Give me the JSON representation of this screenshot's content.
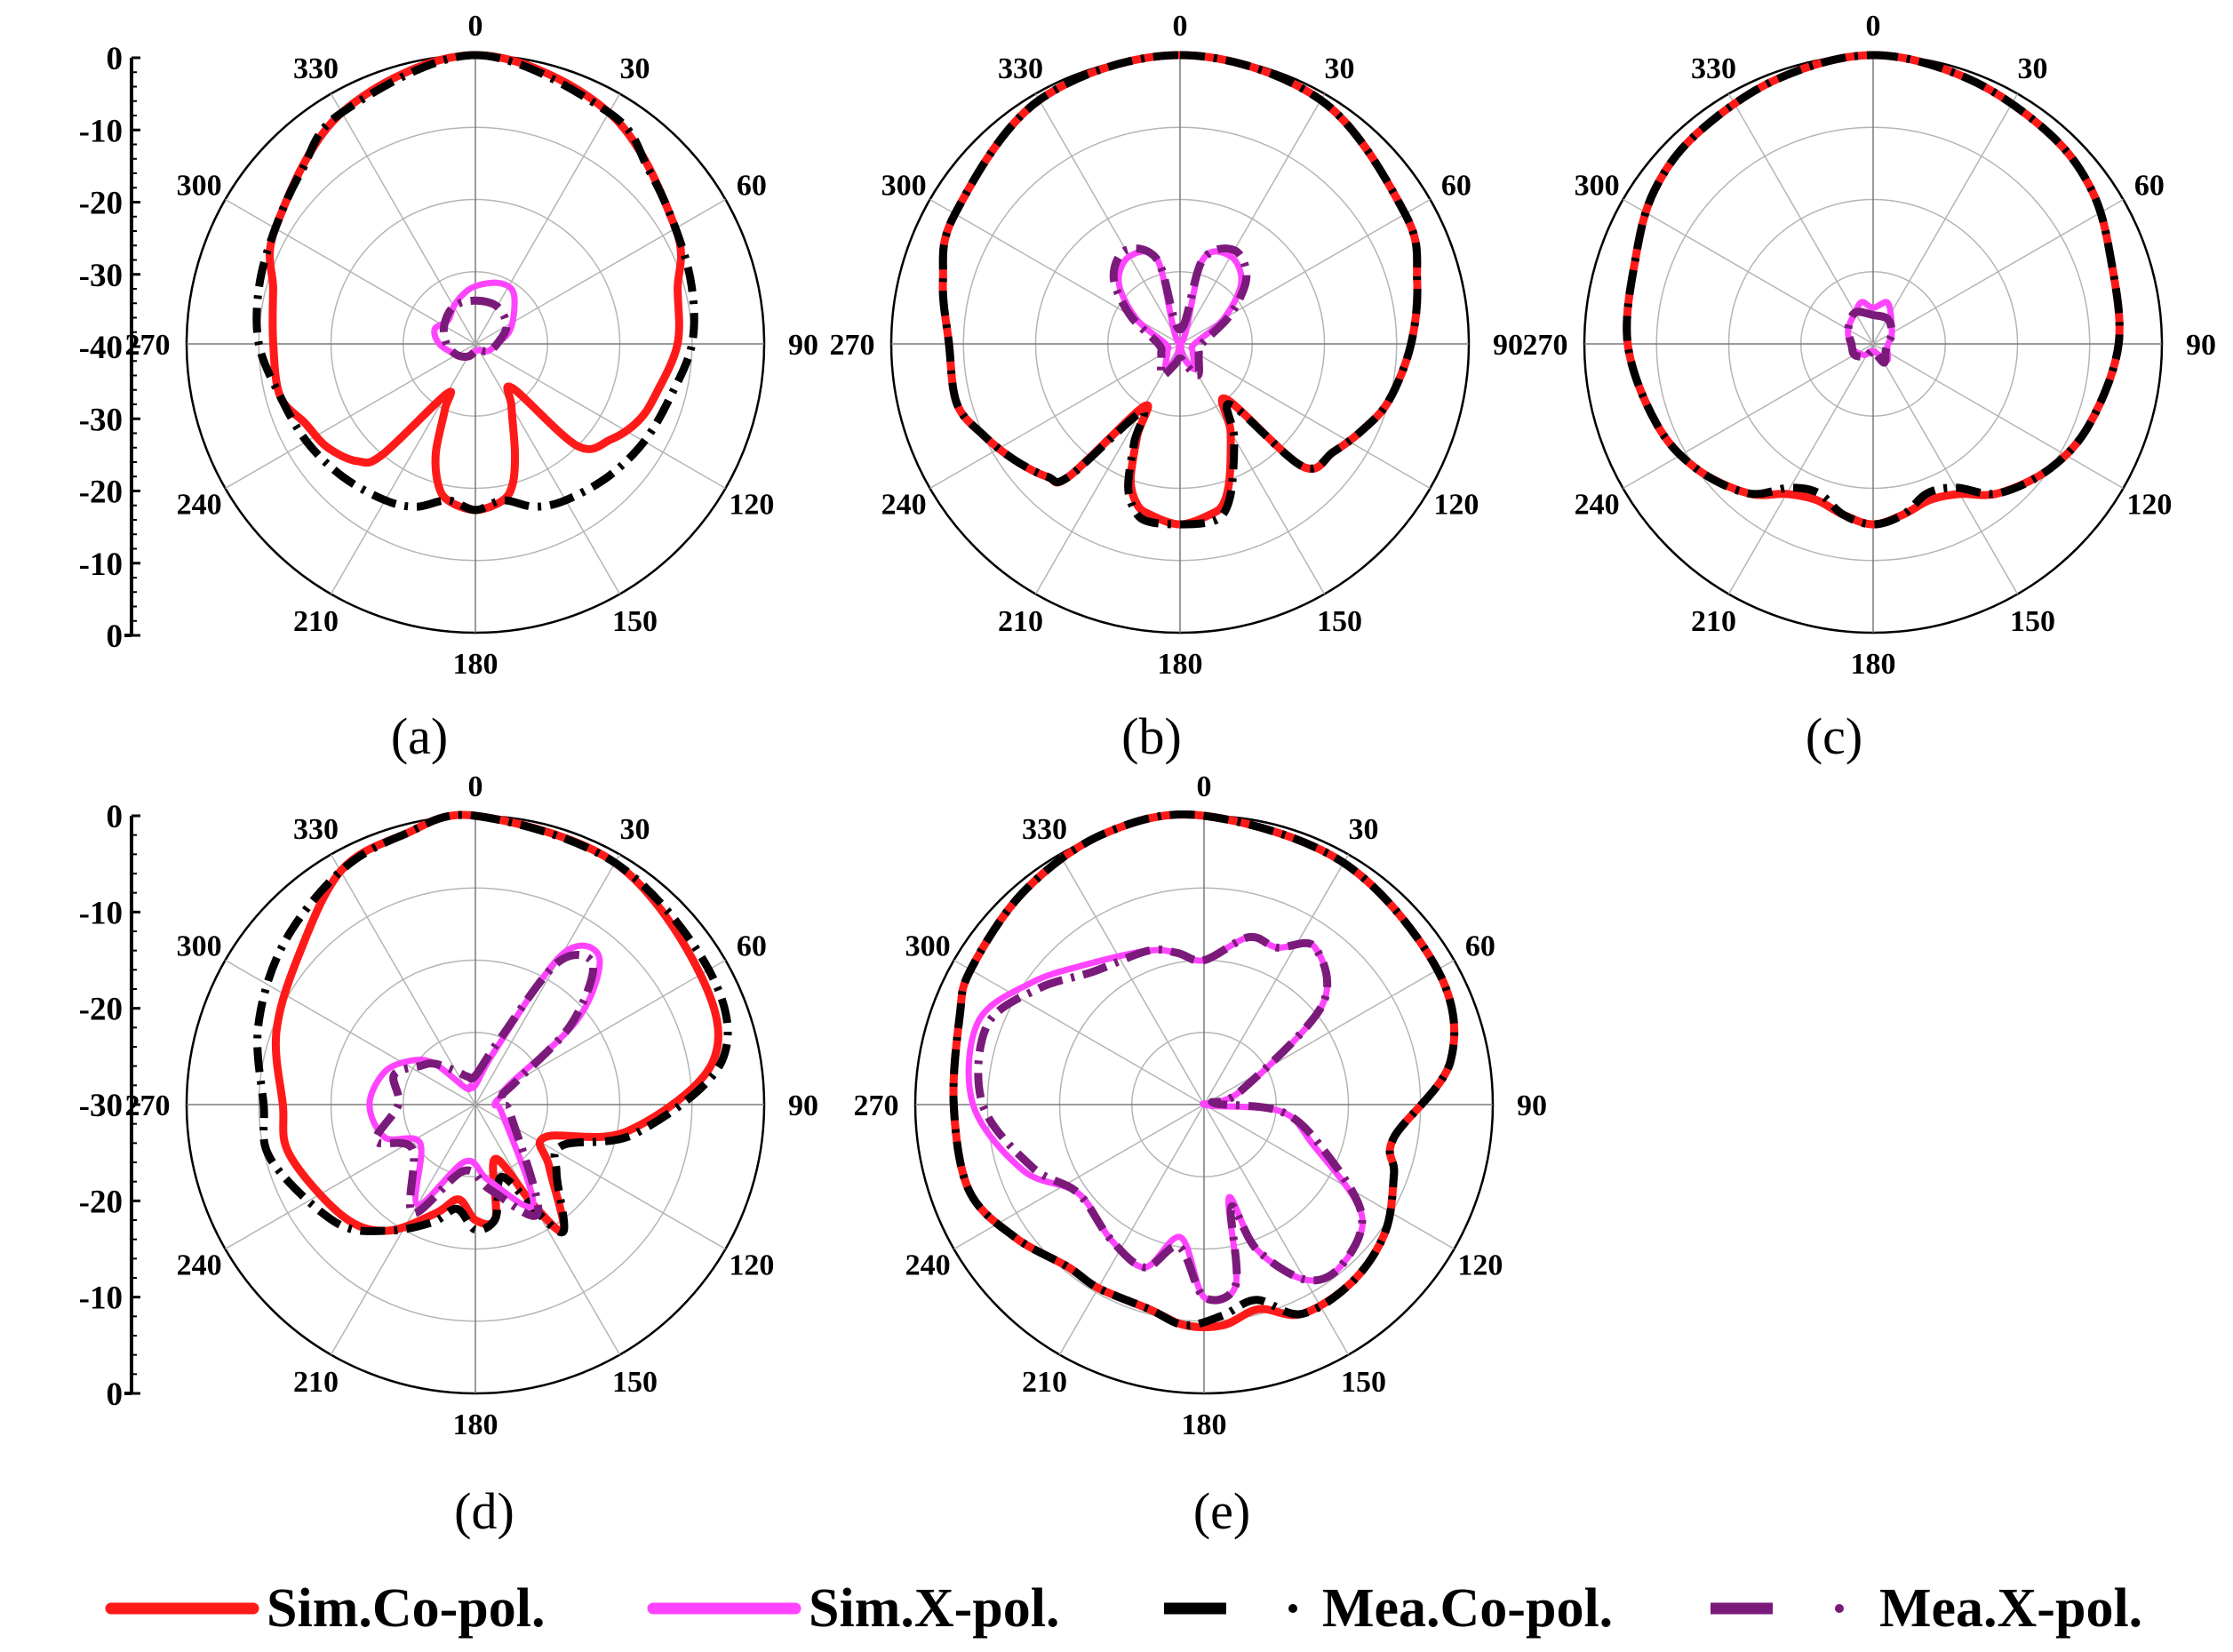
{
  "legend": [
    {
      "key": "sim_co",
      "label": "Sim.Co-pol.",
      "color": "#ff1a1a",
      "style": "solid"
    },
    {
      "key": "sim_x",
      "label": "Sim.X-pol.",
      "color": "#ff44ff",
      "style": "solid"
    },
    {
      "key": "mea_co",
      "label": "Mea.Co-pol.",
      "color": "#000000",
      "style": "dash-dot"
    },
    {
      "key": "mea_x",
      "label": "Mea.X-pol.",
      "color": "#7a1a7a",
      "style": "dash-dot"
    }
  ],
  "chart_data": [
    {
      "type": "polar-line",
      "label": "(a)",
      "theta_labels": [
        "0",
        "30",
        "60",
        "90",
        "120",
        "150",
        "180",
        "210",
        "240",
        "270",
        "300",
        "330"
      ],
      "r_tick_labels": [
        "0",
        "-10",
        "-20",
        "-30",
        "-40",
        "-30",
        "-20",
        "-10",
        "0"
      ],
      "rlim": [
        -40,
        0
      ],
      "series": [
        {
          "key": "sim_co",
          "angles": [
            0,
            30,
            60,
            75,
            90,
            105,
            115,
            125,
            135,
            140,
            150,
            160,
            165,
            170,
            180,
            190,
            195,
            200,
            205,
            210,
            220,
            225,
            235,
            245,
            255,
            270,
            285,
            300,
            330
          ],
          "values": [
            0,
            -3,
            -8,
            -11,
            -12,
            -14,
            -15,
            -17,
            -20,
            -32,
            -30,
            -24,
            -20,
            -18,
            -17,
            -18,
            -20,
            -24,
            -30,
            -32,
            -20,
            -17,
            -15,
            -14,
            -12,
            -12,
            -11,
            -8,
            -3
          ]
        },
        {
          "key": "mea_co",
          "angles": [
            0,
            30,
            45,
            60,
            75,
            90,
            105,
            120,
            135,
            150,
            160,
            170,
            180,
            190,
            200,
            210,
            225,
            240,
            255,
            270,
            285,
            300,
            315,
            330
          ],
          "values": [
            0,
            -3,
            -6,
            -8,
            -9,
            -10,
            -12,
            -13,
            -14,
            -15,
            -16,
            -18,
            -17,
            -18,
            -16,
            -15,
            -14,
            -13,
            -12,
            -10,
            -9,
            -8,
            -6,
            -3
          ]
        },
        {
          "key": "sim_x",
          "angles": [
            0,
            20,
            35,
            50,
            70,
            90,
            120,
            150,
            180,
            210,
            240,
            270,
            290,
            310,
            330,
            345
          ],
          "values": [
            -32,
            -31,
            -31,
            -33,
            -35,
            -37,
            -38,
            -39,
            -39,
            -38,
            -37,
            -35,
            -34,
            -35,
            -34,
            -33
          ]
        },
        {
          "key": "mea_x",
          "angles": [
            0,
            30,
            60,
            90,
            120,
            150,
            180,
            210,
            240,
            270,
            300,
            330
          ],
          "values": [
            -34,
            -34,
            -35,
            -37,
            -38,
            -39,
            -39,
            -38,
            -37,
            -36,
            -35,
            -34
          ]
        }
      ]
    },
    {
      "type": "polar-line",
      "label": "(b)",
      "theta_labels": [
        "0",
        "30",
        "60",
        "90",
        "120",
        "150",
        "180",
        "210",
        "240",
        "270",
        "300",
        "330"
      ],
      "r_tick_labels": [],
      "rlim": [
        -40,
        0
      ],
      "series": [
        {
          "key": "sim_co",
          "angles": [
            0,
            30,
            60,
            75,
            90,
            105,
            115,
            125,
            135,
            140,
            150,
            160,
            165,
            170,
            180,
            190,
            195,
            200,
            205,
            210,
            220,
            225,
            235,
            245,
            255,
            270,
            285,
            300,
            330
          ],
          "values": [
            0,
            -1,
            -4,
            -6,
            -8,
            -10,
            -12,
            -14,
            -16,
            -30,
            -26,
            -20,
            -17,
            -16,
            -15,
            -16,
            -17,
            -20,
            -26,
            -30,
            -16,
            -14,
            -12,
            -10,
            -8,
            -8,
            -6,
            -4,
            -1
          ]
        },
        {
          "key": "mea_co",
          "angles": [
            0,
            30,
            60,
            75,
            90,
            105,
            115,
            125,
            135,
            140,
            150,
            160,
            165,
            170,
            180,
            190,
            195,
            200,
            205,
            210,
            220,
            225,
            235,
            245,
            255,
            270,
            285,
            300,
            330
          ],
          "values": [
            0,
            -1,
            -4,
            -6,
            -8,
            -10,
            -12,
            -14,
            -16,
            -29,
            -25,
            -19,
            -16,
            -15,
            -15,
            -15,
            -16,
            -19,
            -25,
            -29,
            -16,
            -14,
            -12,
            -10,
            -8,
            -8,
            -6,
            -4,
            -1
          ]
        },
        {
          "key": "sim_x",
          "angles": [
            0,
            15,
            30,
            45,
            60,
            90,
            120,
            150,
            165,
            180,
            195,
            210,
            240,
            270,
            300,
            315,
            330,
            345
          ],
          "values": [
            -40,
            -28,
            -26,
            -28,
            -33,
            -38,
            -38,
            -36,
            -38,
            -40,
            -38,
            -36,
            -38,
            -38,
            -33,
            -28,
            -26,
            -28
          ]
        },
        {
          "key": "mea_x",
          "angles": [
            0,
            15,
            30,
            45,
            60,
            90,
            120,
            150,
            165,
            180,
            195,
            210,
            240,
            270,
            300,
            315,
            330,
            345
          ],
          "values": [
            -38,
            -28,
            -25,
            -27,
            -32,
            -37,
            -37,
            -35,
            -37,
            -38,
            -37,
            -35,
            -37,
            -37,
            -32,
            -27,
            -25,
            -28
          ]
        }
      ]
    },
    {
      "type": "polar-line",
      "label": "(c)",
      "theta_labels": [
        "0",
        "30",
        "60",
        "90",
        "120",
        "150",
        "180",
        "210",
        "240",
        "270",
        "300",
        "330"
      ],
      "r_tick_labels": [],
      "rlim": [
        -40,
        0
      ],
      "series": [
        {
          "key": "sim_co",
          "angles": [
            0,
            20,
            40,
            55,
            70,
            90,
            110,
            125,
            140,
            150,
            160,
            170,
            180,
            190,
            200,
            210,
            220,
            235,
            250,
            270,
            290,
            305,
            320,
            340
          ],
          "values": [
            0,
            -1,
            -2,
            -3,
            -5,
            -6,
            -8,
            -10,
            -13,
            -16,
            -17,
            -16,
            -15,
            -16,
            -17,
            -16,
            -13,
            -10,
            -8,
            -6,
            -5,
            -3,
            -2,
            -1
          ]
        },
        {
          "key": "mea_co",
          "angles": [
            0,
            20,
            40,
            55,
            70,
            90,
            110,
            125,
            140,
            150,
            160,
            170,
            180,
            190,
            200,
            210,
            220,
            235,
            250,
            270,
            290,
            305,
            320,
            340
          ],
          "values": [
            0,
            -1,
            -2,
            -3,
            -5,
            -6,
            -8,
            -10,
            -13,
            -17,
            -18,
            -16,
            -15,
            -16,
            -18,
            -17,
            -13,
            -10,
            -8,
            -6,
            -5,
            -3,
            -2,
            -1
          ]
        },
        {
          "key": "sim_x",
          "angles": [
            0,
            20,
            60,
            100,
            140,
            180,
            220,
            260,
            300,
            330,
            345
          ],
          "values": [
            -35,
            -34,
            -37,
            -38,
            -37,
            -39,
            -38,
            -37,
            -36,
            -35,
            -34
          ]
        },
        {
          "key": "mea_x",
          "angles": [
            0,
            30,
            60,
            90,
            120,
            150,
            180,
            210,
            240,
            270,
            300,
            330
          ],
          "values": [
            -36,
            -36,
            -37,
            -38,
            -38,
            -37,
            -39,
            -38,
            -37,
            -37,
            -36,
            -35
          ]
        }
      ]
    },
    {
      "type": "polar-line",
      "label": "(d)",
      "theta_labels": [
        "0",
        "30",
        "60",
        "90",
        "120",
        "150",
        "180",
        "210",
        "240",
        "270",
        "300",
        "330"
      ],
      "r_tick_labels": [
        "0",
        "-10",
        "-20",
        "-30",
        "-20",
        "-10",
        "0"
      ],
      "rlim": [
        -30,
        0
      ],
      "series": [
        {
          "key": "sim_co",
          "angles": [
            0,
            30,
            60,
            80,
            100,
            115,
            130,
            145,
            150,
            160,
            170,
            180,
            190,
            200,
            215,
            230,
            255,
            270,
            290,
            310,
            330,
            345
          ],
          "values": [
            0,
            -1,
            -3,
            -5,
            -14,
            -22,
            -20,
            -14,
            -18,
            -24,
            -18,
            -18,
            -20,
            -18,
            -14,
            -12,
            -10,
            -10,
            -8,
            -6,
            -2,
            -1
          ]
        },
        {
          "key": "mea_co",
          "angles": [
            0,
            30,
            60,
            80,
            100,
            115,
            130,
            145,
            150,
            160,
            170,
            180,
            190,
            200,
            215,
            230,
            255,
            270,
            290,
            310,
            330,
            345
          ],
          "values": [
            0,
            -1,
            -2,
            -4,
            -13,
            -20,
            -19,
            -14,
            -17,
            -22,
            -18,
            -17,
            -19,
            -17,
            -14,
            -11,
            -8,
            -8,
            -6,
            -4,
            -2,
            -1
          ]
        },
        {
          "key": "sim_x",
          "angles": [
            0,
            20,
            30,
            40,
            50,
            60,
            70,
            90,
            110,
            150,
            170,
            190,
            210,
            235,
            250,
            270,
            290,
            305,
            315,
            330,
            345
          ],
          "values": [
            -28,
            -24,
            -12,
            -10,
            -16,
            -26,
            -27,
            -28,
            -27,
            -18,
            -22,
            -24,
            -18,
            -23,
            -20,
            -19,
            -20,
            -22,
            -24,
            -28,
            -28
          ]
        },
        {
          "key": "mea_x",
          "angles": [
            0,
            20,
            30,
            40,
            50,
            60,
            70,
            90,
            110,
            150,
            170,
            190,
            210,
            235,
            250,
            270,
            290,
            305,
            315,
            330,
            345
          ],
          "values": [
            -27,
            -23,
            -13,
            -11,
            -17,
            -25,
            -27,
            -27,
            -26,
            -17,
            -21,
            -23,
            -17,
            -22,
            -19,
            -22,
            -21,
            -23,
            -24,
            -26,
            -27
          ]
        }
      ]
    },
    {
      "type": "polar-line",
      "label": "(e)",
      "theta_labels": [
        "0",
        "30",
        "60",
        "90",
        "120",
        "150",
        "180",
        "210",
        "240",
        "270",
        "300",
        "330"
      ],
      "r_tick_labels": [],
      "rlim": [
        -30,
        0
      ],
      "series": [
        {
          "key": "sim_co",
          "angles": [
            0,
            30,
            60,
            80,
            100,
            110,
            125,
            140,
            155,
            165,
            175,
            185,
            195,
            210,
            220,
            235,
            250,
            270,
            290,
            300,
            320,
            340
          ],
          "values": [
            0,
            -1,
            -2,
            -4,
            -10,
            -9,
            -7,
            -6,
            -6,
            -8,
            -7,
            -7,
            -8,
            -8,
            -8,
            -6,
            -4,
            -4,
            -3,
            -2,
            -1,
            0
          ]
        },
        {
          "key": "mea_co",
          "angles": [
            0,
            30,
            60,
            80,
            100,
            110,
            125,
            140,
            155,
            165,
            175,
            185,
            195,
            210,
            220,
            235,
            250,
            270,
            290,
            300,
            320,
            340
          ],
          "values": [
            0,
            -1,
            -2,
            -4,
            -10,
            -9,
            -7,
            -6,
            -6,
            -9,
            -8,
            -7,
            -8,
            -8,
            -8,
            -6,
            -4,
            -4,
            -3,
            -2,
            -1,
            0
          ]
        },
        {
          "key": "sim_x",
          "angles": [
            0,
            15,
            25,
            35,
            50,
            70,
            80,
            95,
            110,
            125,
            140,
            150,
            160,
            165,
            170,
            180,
            190,
            200,
            215,
            235,
            250,
            270,
            290,
            305,
            320,
            340,
            350
          ],
          "values": [
            -15,
            -12,
            -12,
            -10,
            -14,
            -26,
            -30,
            -22,
            -18,
            -10,
            -8,
            -9,
            -14,
            -20,
            -11,
            -10,
            -16,
            -12,
            -13,
            -14,
            -10,
            -6,
            -5,
            -8,
            -11,
            -13,
            -14
          ]
        },
        {
          "key": "mea_x",
          "angles": [
            0,
            15,
            25,
            35,
            50,
            70,
            80,
            95,
            110,
            125,
            140,
            150,
            160,
            165,
            170,
            180,
            190,
            200,
            215,
            235,
            250,
            270,
            290,
            305,
            320,
            340,
            350
          ],
          "values": [
            -15,
            -12,
            -12,
            -10,
            -14,
            -26,
            -29,
            -22,
            -17,
            -10,
            -8,
            -9,
            -14,
            -19,
            -11,
            -10,
            -15,
            -12,
            -13,
            -14,
            -11,
            -7,
            -6,
            -9,
            -12,
            -13,
            -14
          ]
        }
      ]
    }
  ]
}
